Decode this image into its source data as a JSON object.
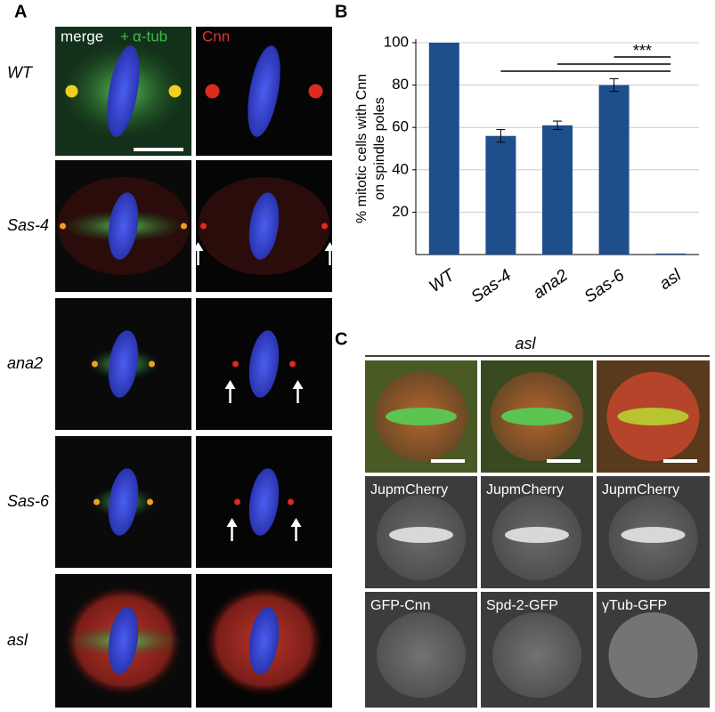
{
  "panel_a": {
    "label": "A",
    "merge": "merge",
    "plus": "+",
    "tub": "α-tub",
    "cnn": "Cnn",
    "rows": [
      "WT",
      "Sas-4",
      "ana2",
      "Sas-6",
      "asl"
    ]
  },
  "chart_data": {
    "type": "bar",
    "label": "B",
    "ylabel": [
      "% mitotic cells with Cnn",
      "on spindle poles"
    ],
    "categories": [
      "WT",
      "Sas-4",
      "ana2",
      "Sas-6",
      "asl"
    ],
    "values": [
      100,
      56,
      61,
      80,
      0.5
    ],
    "errors": [
      0,
      3,
      2,
      3,
      0
    ],
    "color": "#1f4e8c",
    "ylim": [
      0,
      100
    ],
    "yticks": [
      20,
      40,
      60,
      80,
      100
    ],
    "grid": true,
    "significance": "***"
  },
  "panel_c": {
    "label": "C",
    "genotype": "asl",
    "rows": [
      [
        "JupmCherry",
        "JupmCherry",
        "JupmCherry"
      ],
      [
        "GFP-Cnn",
        "Spd-2-GFP",
        "γTub-GFP"
      ]
    ]
  }
}
